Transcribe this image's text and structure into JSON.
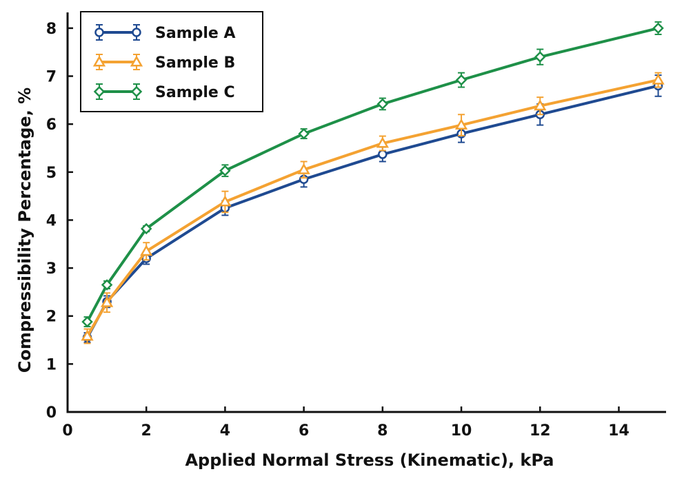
{
  "chart_data": {
    "type": "line",
    "xlabel": "Applied Normal Stress (Kinematic), kPa",
    "ylabel": "Compressibility Percentage, %",
    "xlim": [
      0,
      15.2
    ],
    "ylim": [
      0,
      8.3
    ],
    "xticks": [
      "0",
      "2",
      "4",
      "6",
      "8",
      "10",
      "12",
      "14"
    ],
    "yticks": [
      "0",
      "1",
      "2",
      "3",
      "4",
      "5",
      "6",
      "7",
      "8"
    ],
    "legend_position": "top-left",
    "grid": false,
    "x": [
      0.5,
      1,
      2,
      4,
      6,
      8,
      10,
      12,
      15
    ],
    "series": [
      {
        "name": "Sample A",
        "color": "#1f4a91",
        "marker": "circle",
        "values": [
          1.55,
          2.3,
          3.2,
          4.25,
          4.85,
          5.37,
          5.8,
          6.2,
          6.8
        ],
        "errors": [
          0.1,
          0.12,
          0.12,
          0.15,
          0.16,
          0.15,
          0.18,
          0.22,
          0.22
        ]
      },
      {
        "name": "Sample B",
        "color": "#f4a232",
        "marker": "triangle",
        "values": [
          1.58,
          2.28,
          3.35,
          4.38,
          5.05,
          5.6,
          5.98,
          6.38,
          6.92
        ],
        "errors": [
          0.15,
          0.2,
          0.18,
          0.22,
          0.17,
          0.15,
          0.22,
          0.18,
          0.15
        ]
      },
      {
        "name": "Sample C",
        "color": "#1e9048",
        "marker": "diamond",
        "values": [
          1.88,
          2.65,
          3.82,
          5.03,
          5.8,
          6.42,
          6.92,
          7.4,
          8.0
        ],
        "errors": [
          0.1,
          0.08,
          0.06,
          0.12,
          0.1,
          0.12,
          0.15,
          0.16,
          0.13
        ]
      }
    ]
  }
}
